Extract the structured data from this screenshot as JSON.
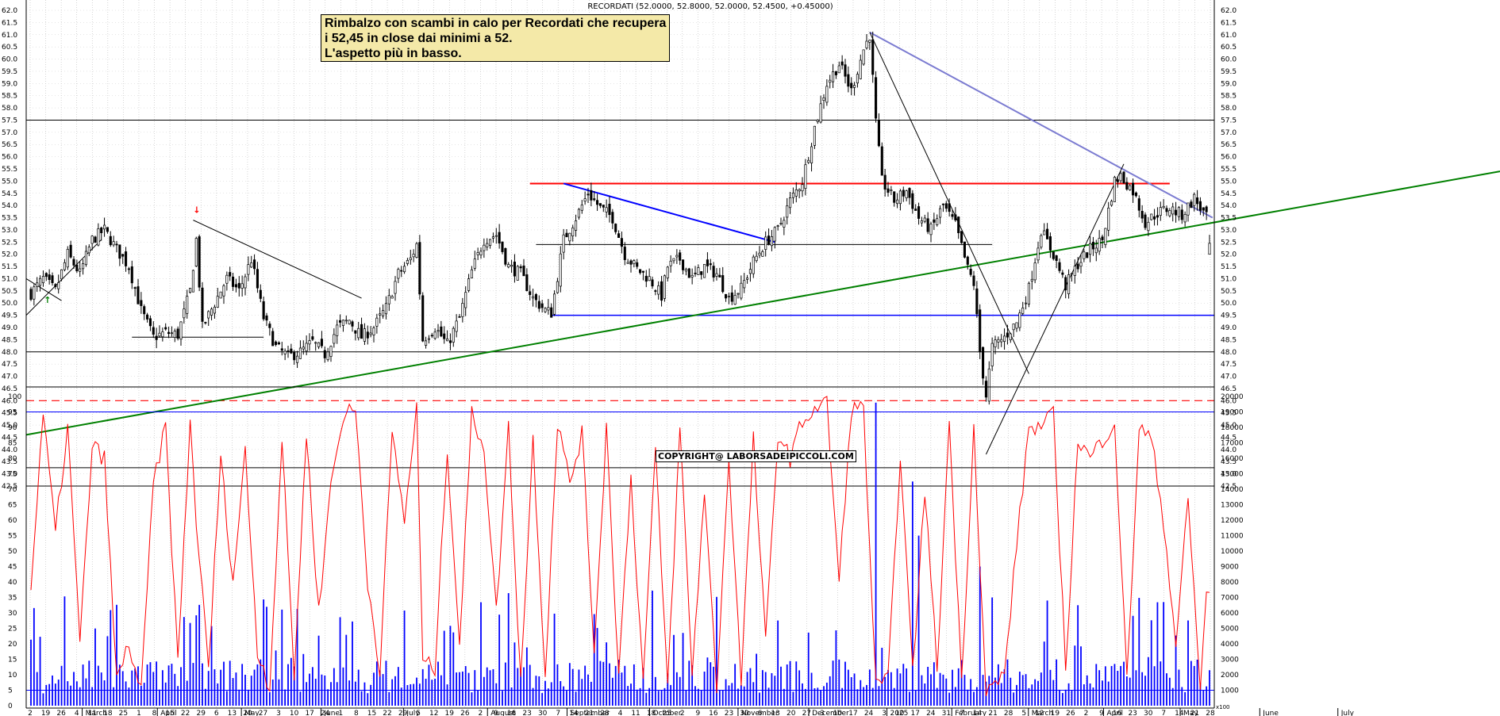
{
  "header": {
    "series_label": "RECORDATI (52.0000, 52.8000, 52.0000, 52.4500, +0.45000)"
  },
  "annotation": {
    "lines": [
      "Rimbalzo con scambi in calo per Recordati che recupera",
      "i 52,45 in close dai minimi a 52.",
      "L'aspetto più in basso."
    ]
  },
  "copyright": "COPYRIGHT@ LABORSADEIPICCOLI.COM",
  "colors": {
    "price": "#000000",
    "rsi": "#ff0000",
    "volume": "#0000ff",
    "trend_green": "#008000",
    "resistance_red": "#ff0000",
    "support_blue": "#0000ff",
    "trend_lightblue": "#7b7bd1"
  },
  "chart_data": {
    "type": "candlestick",
    "price_axis": {
      "min": 42.5,
      "max": 62.0,
      "step": 0.5,
      "ticks": [
        "42.5",
        "43.0",
        "43.5",
        "44.0",
        "44.5",
        "45.0",
        "45.5",
        "46.0",
        "46.5",
        "47.0",
        "47.5",
        "48.0",
        "48.5",
        "49.0",
        "49.5",
        "50.0",
        "50.5",
        "51.0",
        "51.5",
        "52.0",
        "52.5",
        "53.0",
        "53.5",
        "54.0",
        "54.5",
        "55.0",
        "55.5",
        "56.0",
        "56.5",
        "57.0",
        "57.5",
        "58.0",
        "58.5",
        "59.0",
        "59.5",
        "60.0",
        "60.5",
        "61.0",
        "61.5",
        "62.0"
      ]
    },
    "last_bar": {
      "open": 52.0,
      "high": 52.8,
      "low": 52.0,
      "close": 52.45,
      "change": 0.45
    },
    "price_anchors": [
      [
        0,
        50.4
      ],
      [
        4,
        51.0
      ],
      [
        8,
        50.5
      ],
      [
        12,
        52.0
      ],
      [
        16,
        51.2
      ],
      [
        20,
        52.6
      ],
      [
        24,
        53.0
      ],
      [
        28,
        52.2
      ],
      [
        32,
        51.5
      ],
      [
        36,
        49.7
      ],
      [
        40,
        48.6
      ],
      [
        44,
        48.8
      ],
      [
        48,
        48.7
      ],
      [
        52,
        50.5
      ],
      [
        54,
        52.6
      ],
      [
        56,
        49.0
      ],
      [
        60,
        50.0
      ],
      [
        64,
        51.0
      ],
      [
        68,
        50.5
      ],
      [
        72,
        51.8
      ],
      [
        76,
        49.4
      ],
      [
        80,
        48.2
      ],
      [
        84,
        47.8
      ],
      [
        88,
        48.0
      ],
      [
        92,
        48.4
      ],
      [
        96,
        47.9
      ],
      [
        100,
        49.0
      ],
      [
        104,
        49.3
      ],
      [
        108,
        48.6
      ],
      [
        112,
        49.0
      ],
      [
        116,
        49.8
      ],
      [
        120,
        51.2
      ],
      [
        124,
        51.8
      ],
      [
        126,
        52.4
      ],
      [
        128,
        48.5
      ],
      [
        132,
        49.0
      ],
      [
        136,
        48.3
      ],
      [
        140,
        49.4
      ],
      [
        144,
        51.3
      ],
      [
        148,
        52.6
      ],
      [
        152,
        52.8
      ],
      [
        156,
        51.5
      ],
      [
        160,
        51.2
      ],
      [
        164,
        50.2
      ],
      [
        168,
        49.7
      ],
      [
        170,
        49.6
      ],
      [
        174,
        52.6
      ],
      [
        178,
        53.5
      ],
      [
        182,
        54.5
      ],
      [
        186,
        53.9
      ],
      [
        190,
        53.5
      ],
      [
        194,
        52.0
      ],
      [
        198,
        51.4
      ],
      [
        202,
        51.0
      ],
      [
        206,
        50.3
      ],
      [
        208,
        51.5
      ],
      [
        212,
        51.8
      ],
      [
        216,
        51.0
      ],
      [
        220,
        51.5
      ],
      [
        224,
        51.2
      ],
      [
        228,
        50.2
      ],
      [
        232,
        50.6
      ],
      [
        236,
        51.7
      ],
      [
        240,
        52.5
      ],
      [
        244,
        53.0
      ],
      [
        248,
        54.2
      ],
      [
        252,
        55.0
      ],
      [
        256,
        57.2
      ],
      [
        260,
        59.0
      ],
      [
        264,
        59.8
      ],
      [
        268,
        58.7
      ],
      [
        272,
        60.4
      ],
      [
        274,
        61.0
      ],
      [
        276,
        57.4
      ],
      [
        278,
        55.0
      ],
      [
        282,
        54.2
      ],
      [
        286,
        54.6
      ],
      [
        290,
        53.5
      ],
      [
        294,
        53.0
      ],
      [
        298,
        54.0
      ],
      [
        302,
        53.2
      ],
      [
        306,
        51.4
      ],
      [
        308,
        50.8
      ],
      [
        310,
        48.0
      ],
      [
        312,
        46.2
      ],
      [
        314,
        48.2
      ],
      [
        318,
        48.6
      ],
      [
        322,
        49.2
      ],
      [
        326,
        50.6
      ],
      [
        330,
        53.0
      ],
      [
        334,
        52.0
      ],
      [
        338,
        50.7
      ],
      [
        342,
        51.6
      ],
      [
        346,
        52.2
      ],
      [
        350,
        52.6
      ],
      [
        354,
        55.0
      ],
      [
        356,
        55.2
      ],
      [
        360,
        54.6
      ],
      [
        364,
        53.3
      ],
      [
        368,
        53.7
      ],
      [
        372,
        53.9
      ],
      [
        376,
        53.6
      ],
      [
        380,
        54.3
      ],
      [
        384,
        53.5
      ],
      [
        385,
        52.45
      ]
    ],
    "lines": {
      "horizontal_black": [
        57.5,
        48.0,
        43.25,
        42.5
      ],
      "resistance_red": 54.9,
      "support_blue": 49.5,
      "dashed_red": 46.0,
      "short_black_levels": [
        48.6,
        52.4
      ]
    },
    "rsi_axis": {
      "min": 0,
      "max": 100,
      "ticks": [
        "0",
        "5",
        "10",
        "15",
        "20",
        "25",
        "30",
        "35",
        "40",
        "45",
        "50",
        "55",
        "60",
        "65",
        "70",
        "75",
        "80",
        "85",
        "90",
        "95",
        "100"
      ],
      "guide_upper": 95,
      "guide_lower": 5
    },
    "volume_axis": {
      "min": 0,
      "max": 20000,
      "ticks": [
        "1000",
        "2000",
        "3000",
        "4000",
        "5000",
        "6000",
        "7000",
        "8000",
        "9000",
        "10000",
        "11000",
        "12000",
        "13000",
        "14000",
        "15000",
        "16000",
        "17000",
        "18000",
        "19000",
        "20000"
      ],
      "unit_label": "x100"
    },
    "rsi_anchors": [
      [
        0,
        38
      ],
      [
        4,
        94
      ],
      [
        8,
        56
      ],
      [
        12,
        90
      ],
      [
        16,
        20
      ],
      [
        20,
        84
      ],
      [
        24,
        80
      ],
      [
        28,
        8
      ],
      [
        32,
        20
      ],
      [
        36,
        4
      ],
      [
        40,
        72
      ],
      [
        44,
        90
      ],
      [
        48,
        14
      ],
      [
        52,
        92
      ],
      [
        54,
        60
      ],
      [
        58,
        12
      ],
      [
        62,
        80
      ],
      [
        66,
        40
      ],
      [
        70,
        82
      ],
      [
        74,
        18
      ],
      [
        78,
        6
      ],
      [
        82,
        86
      ],
      [
        86,
        10
      ],
      [
        90,
        88
      ],
      [
        94,
        30
      ],
      [
        98,
        72
      ],
      [
        102,
        94
      ],
      [
        106,
        96
      ],
      [
        110,
        40
      ],
      [
        114,
        12
      ],
      [
        118,
        88
      ],
      [
        122,
        60
      ],
      [
        126,
        96
      ],
      [
        128,
        14
      ],
      [
        132,
        12
      ],
      [
        136,
        84
      ],
      [
        140,
        20
      ],
      [
        144,
        94
      ],
      [
        148,
        84
      ],
      [
        152,
        30
      ],
      [
        156,
        90
      ],
      [
        160,
        8
      ],
      [
        164,
        86
      ],
      [
        168,
        10
      ],
      [
        172,
        92
      ],
      [
        176,
        72
      ],
      [
        180,
        88
      ],
      [
        184,
        18
      ],
      [
        188,
        90
      ],
      [
        192,
        10
      ],
      [
        196,
        74
      ],
      [
        200,
        8
      ],
      [
        204,
        82
      ],
      [
        208,
        6
      ],
      [
        212,
        90
      ],
      [
        216,
        10
      ],
      [
        220,
        70
      ],
      [
        224,
        6
      ],
      [
        228,
        80
      ],
      [
        232,
        8
      ],
      [
        236,
        86
      ],
      [
        240,
        20
      ],
      [
        244,
        88
      ],
      [
        248,
        80
      ],
      [
        252,
        92
      ],
      [
        256,
        96
      ],
      [
        260,
        98
      ],
      [
        264,
        40
      ],
      [
        268,
        96
      ],
      [
        272,
        96
      ],
      [
        276,
        6
      ],
      [
        280,
        8
      ],
      [
        284,
        82
      ],
      [
        288,
        10
      ],
      [
        292,
        70
      ],
      [
        296,
        12
      ],
      [
        300,
        92
      ],
      [
        304,
        8
      ],
      [
        308,
        90
      ],
      [
        312,
        4
      ],
      [
        314,
        6
      ],
      [
        318,
        10
      ],
      [
        322,
        52
      ],
      [
        326,
        90
      ],
      [
        330,
        90
      ],
      [
        334,
        94
      ],
      [
        338,
        12
      ],
      [
        342,
        86
      ],
      [
        346,
        80
      ],
      [
        350,
        86
      ],
      [
        354,
        92
      ],
      [
        358,
        8
      ],
      [
        362,
        90
      ],
      [
        366,
        86
      ],
      [
        370,
        60
      ],
      [
        374,
        20
      ],
      [
        378,
        66
      ],
      [
        382,
        6
      ],
      [
        384,
        36
      ]
    ],
    "x_axis": {
      "day_ticks": [
        "2",
        "19",
        "26",
        "4",
        "11",
        "18",
        "25",
        "1",
        "8",
        "15",
        "22",
        "29",
        "6",
        "13",
        "20",
        "27",
        "3",
        "10",
        "17",
        "24",
        "1",
        "8",
        "15",
        "22",
        "29",
        "5",
        "12",
        "19",
        "26",
        "2",
        "9",
        "16",
        "23",
        "30",
        "7",
        "14",
        "21",
        "28",
        "4",
        "11",
        "18",
        "25",
        "2",
        "9",
        "16",
        "23",
        "30",
        "6",
        "13",
        "20",
        "27",
        "3",
        "10",
        "17",
        "24",
        "3",
        "10",
        "17",
        "24",
        "31",
        "7",
        "14",
        "21",
        "28",
        "5",
        "12",
        "19",
        "26",
        "2",
        "9",
        "16",
        "23",
        "30",
        "7",
        "14",
        "21",
        "28"
      ],
      "months": [
        [
          "March",
          0.038
        ],
        [
          "April",
          0.089
        ],
        [
          "May",
          0.146
        ],
        [
          "June",
          0.2
        ],
        [
          "July",
          0.256
        ],
        [
          "August",
          0.313
        ],
        [
          "September",
          0.367
        ],
        [
          "October",
          0.423
        ],
        [
          "November",
          0.483
        ],
        [
          "December",
          0.531
        ],
        [
          "2025",
          0.584
        ],
        [
          "February",
          0.628
        ],
        [
          "March",
          0.68
        ],
        [
          "April",
          0.731
        ],
        [
          "May",
          0.783
        ],
        [
          "June",
          0.837
        ],
        [
          "July",
          0.89
        ]
      ]
    }
  }
}
